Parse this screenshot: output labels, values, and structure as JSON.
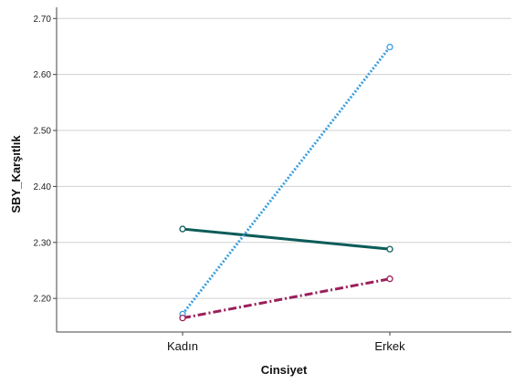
{
  "chart_data": {
    "type": "line",
    "xlabel": "Cinsiyet",
    "ylabel": "SBY_Karşıtlık",
    "categories": [
      "Kadın",
      "Erkek"
    ],
    "ylim": [
      2.14,
      2.72
    ],
    "yticks": [
      "2.20",
      "2.30",
      "2.40",
      "2.50",
      "2.60",
      "2.70"
    ],
    "grid": true,
    "series": [
      {
        "values": [
          2.324,
          2.288
        ],
        "color": "#0b5c59",
        "dash": "solid"
      },
      {
        "values": [
          2.172,
          2.649
        ],
        "color": "#3a9ee0",
        "dash": "dotted"
      },
      {
        "values": [
          2.165,
          2.235
        ],
        "color": "#9b1f5a",
        "dash": "dashdot"
      }
    ]
  }
}
